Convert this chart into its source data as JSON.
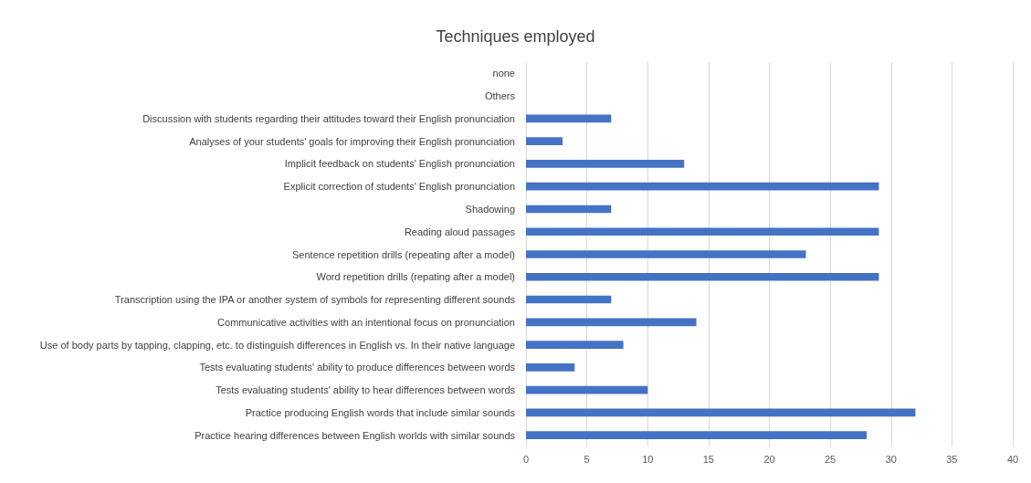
{
  "chart_data": {
    "type": "bar",
    "title": "Techniques employed",
    "orientation": "horizontal",
    "categories": [
      "none",
      "Others",
      "Discussion with students regarding their attitudes toward their English pronunciation",
      "Analyses of your students' goals for improving their English pronunciation",
      "Implicit feedback on students' English pronunciation",
      "Explicit correction of students' English pronunciation",
      "Shadowing",
      "Reading aloud passages",
      "Sentence repetition drills (repeating after a model)",
      "Word repetition drills (repating after a model)",
      "Transcription using the IPA or another system of symbols for representing different sounds",
      "Communicative activities with an intentional focus on pronunciation",
      "Use of body parts by tapping, clapping, etc. to distinguish differences in English vs. In their native language",
      "Tests evaluating students' ability to produce differences between words",
      "Tests evaluating students' ability to hear differences between words",
      "Practice producing English words that include similar sounds",
      "Practice hearing differences between English worlds with similar sounds"
    ],
    "values": [
      0,
      0,
      7,
      3,
      13,
      29,
      7,
      29,
      23,
      29,
      7,
      14,
      8,
      4,
      10,
      32,
      28
    ],
    "color": "#4472c4",
    "xlim": [
      0,
      40
    ],
    "xticks": [
      0,
      5,
      10,
      15,
      20,
      25,
      30,
      35,
      40
    ],
    "grid": "x"
  }
}
